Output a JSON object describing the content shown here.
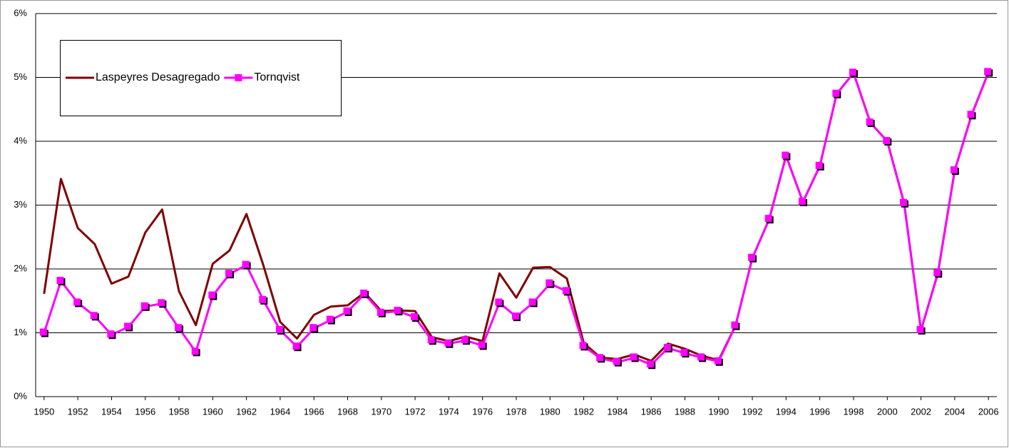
{
  "chart_data": {
    "type": "line",
    "x": [
      1950,
      1951,
      1952,
      1953,
      1954,
      1955,
      1956,
      1957,
      1958,
      1959,
      1960,
      1961,
      1962,
      1963,
      1964,
      1965,
      1966,
      1967,
      1968,
      1969,
      1970,
      1971,
      1972,
      1973,
      1974,
      1975,
      1976,
      1977,
      1978,
      1979,
      1980,
      1981,
      1982,
      1983,
      1984,
      1985,
      1986,
      1987,
      1988,
      1989,
      1990,
      1991,
      1992,
      1993,
      1994,
      1995,
      1996,
      1997,
      1998,
      1999,
      2000,
      2001,
      2002,
      2003,
      2004,
      2005,
      2006
    ],
    "series": [
      {
        "name": "Laspeyres Desagregado",
        "color": "#800000",
        "marker": false,
        "values": [
          1.61,
          3.41,
          2.64,
          2.39,
          1.77,
          1.88,
          2.57,
          2.93,
          1.65,
          1.12,
          2.08,
          2.29,
          2.86,
          2.06,
          1.17,
          0.91,
          1.28,
          1.41,
          1.43,
          1.63,
          1.34,
          1.35,
          1.34,
          0.93,
          0.87,
          0.94,
          0.87,
          1.93,
          1.55,
          2.02,
          2.03,
          1.85,
          0.84,
          0.61,
          0.59,
          0.66,
          0.56,
          0.83,
          0.75,
          0.64,
          0.57,
          1.11,
          2.17,
          2.78,
          3.77,
          3.05,
          3.61,
          4.74,
          5.07,
          4.29,
          4.0,
          3.03,
          1.04,
          1.93,
          3.54,
          4.41,
          5.08
        ]
      },
      {
        "name": "Tornqvist",
        "color": "#ff00ff",
        "marker": true,
        "values": [
          1.0,
          1.81,
          1.47,
          1.26,
          0.97,
          1.09,
          1.41,
          1.46,
          1.07,
          0.7,
          1.58,
          1.92,
          2.06,
          1.51,
          1.04,
          0.78,
          1.07,
          1.2,
          1.33,
          1.61,
          1.31,
          1.34,
          1.24,
          0.88,
          0.83,
          0.88,
          0.8,
          1.47,
          1.25,
          1.47,
          1.77,
          1.65,
          0.79,
          0.6,
          0.54,
          0.61,
          0.5,
          0.76,
          0.68,
          0.61,
          0.55,
          1.11,
          2.17,
          2.78,
          3.77,
          3.05,
          3.61,
          4.74,
          5.07,
          4.29,
          4.0,
          3.03,
          1.04,
          1.93,
          3.54,
          4.41,
          5.08
        ]
      }
    ],
    "xlim": [
      1949.5,
      2006.5
    ],
    "xticks": [
      1950,
      1952,
      1954,
      1956,
      1958,
      1960,
      1962,
      1964,
      1966,
      1968,
      1970,
      1972,
      1974,
      1976,
      1978,
      1980,
      1982,
      1984,
      1986,
      1988,
      1990,
      1992,
      1994,
      1996,
      1998,
      2000,
      2002,
      2004,
      2006
    ],
    "ylim": [
      0,
      6
    ],
    "yticks": [
      {
        "value": 0,
        "label": "0%"
      },
      {
        "value": 1,
        "label": "1%"
      },
      {
        "value": 2,
        "label": "2%"
      },
      {
        "value": 3,
        "label": "3%"
      },
      {
        "value": 4,
        "label": "4%"
      },
      {
        "value": 5,
        "label": "5%"
      },
      {
        "value": 6,
        "label": "6%"
      }
    ],
    "grid": true,
    "legend": "top-left"
  }
}
